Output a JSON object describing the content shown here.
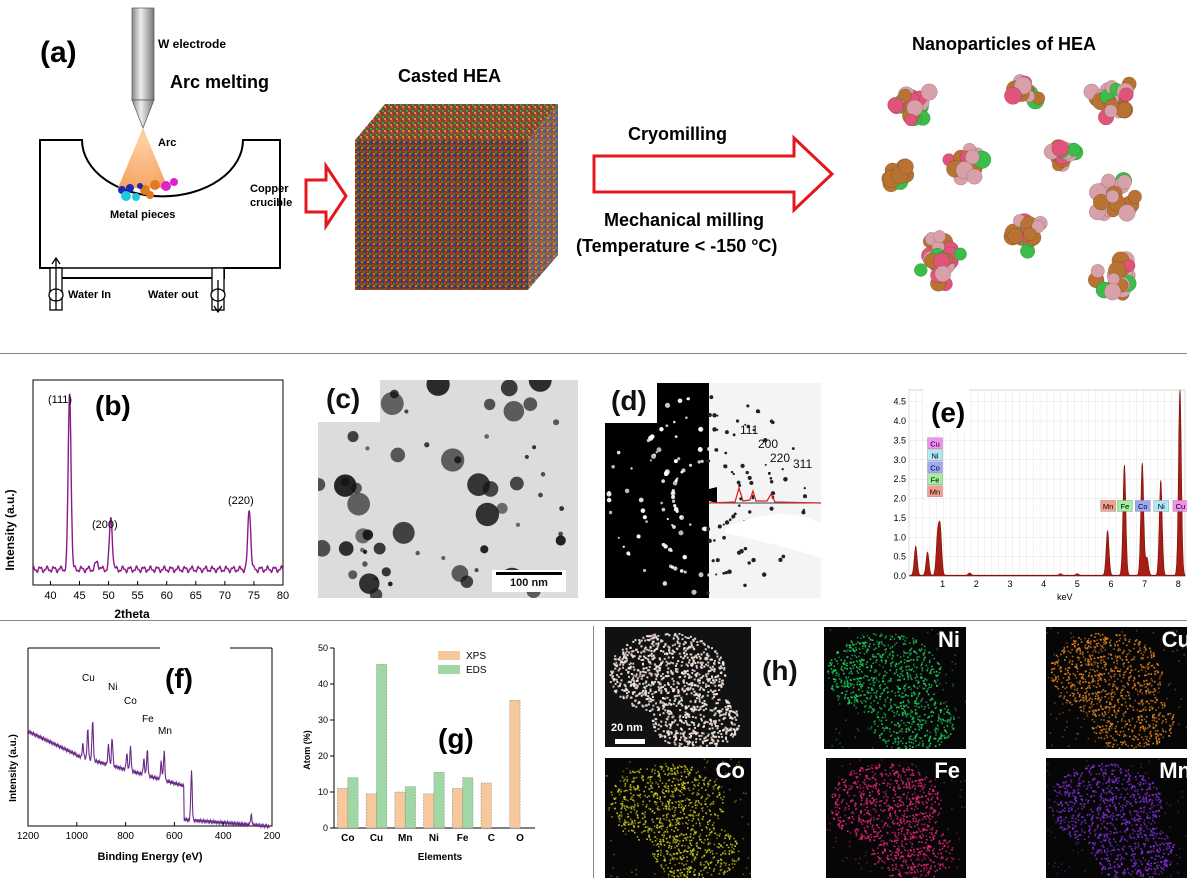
{
  "panel_a": {
    "label": "(a)",
    "arc_melting": {
      "title": "Arc melting",
      "electrode": "W electrode",
      "arc": "Arc",
      "metal_pieces": "Metal pieces",
      "copper_crucible_line1": "Copper",
      "copper_crucible_line2": "crucible",
      "water_in": "Water In",
      "water_out": "Water out"
    },
    "casted": {
      "title": "Casted HEA"
    },
    "process": {
      "cryomilling": "Cryomilling",
      "mechanical_milling": "Mechanical milling",
      "temperature": "(Temperature < -150 °C)"
    },
    "nanoparticles": {
      "title": "Nanoparticles of HEA"
    },
    "colors": {
      "arrow_red": "#e3171c",
      "cu": "#b87333",
      "ni": "#3bbd4a",
      "fe": "#e0547a",
      "co": "#d8a0a8"
    }
  },
  "panel_b": {
    "label": "(b)",
    "ylabel": "Intensity (a.u.)",
    "xlabel": "2theta",
    "peak_labels": [
      "(111)",
      "(200)",
      "(220)"
    ],
    "line_color": "#8a1a8a"
  },
  "panel_c": {
    "label": "(c)",
    "scale_bar": "100 nm"
  },
  "panel_d": {
    "label": "(d)",
    "rings": [
      "111",
      "200",
      "220",
      "311"
    ]
  },
  "panel_e": {
    "label": "(e)",
    "xlabel": "keV",
    "low_labels": [
      "Cu",
      "Ni",
      "Co",
      "Fe",
      "Mn"
    ],
    "high_labels": [
      "Mn",
      "Fe",
      "Co",
      "Ni",
      "Cu"
    ],
    "peak_color": "#a51d14"
  },
  "panel_f": {
    "label": "(f)",
    "ylabel": "Intensity (a.u.)",
    "xlabel": "Binding Energy (eV)",
    "peak_labels": [
      "Cu",
      "Ni",
      "Co",
      "Fe",
      "Mn"
    ]
  },
  "panel_g": {
    "label": "(g)",
    "ylabel": "Atom (%)",
    "xlabel": "Elements",
    "legend": [
      "XPS",
      "EDS"
    ]
  },
  "panel_h": {
    "label": "(h)",
    "scale_bar": "20 nm",
    "maps": [
      "Ni",
      "Cu",
      "Co",
      "Fe",
      "Mn"
    ]
  },
  "chart_data": [
    {
      "type": "line",
      "panel": "b",
      "xlabel": "2theta",
      "ylabel": "Intensity (a.u.)",
      "xlim": [
        37,
        80
      ],
      "x_ticks": [
        40,
        45,
        50,
        55,
        60,
        65,
        70,
        75,
        80
      ],
      "peaks": [
        {
          "x": 43.3,
          "height": 0.95,
          "label": "(111)"
        },
        {
          "x": 50.4,
          "height": 0.28,
          "label": "(200)"
        },
        {
          "x": 74.2,
          "height": 0.33,
          "label": "(220)"
        }
      ]
    },
    {
      "type": "line",
      "panel": "e",
      "xlabel": "keV",
      "xlim": [
        0,
        8.2
      ],
      "ylim": [
        0,
        4.8
      ],
      "x_ticks": [
        1,
        2,
        3,
        4,
        5,
        6,
        7,
        8
      ],
      "y_ticks": [
        0.0,
        0.5,
        1.0,
        1.5,
        2.0,
        2.5,
        3.0,
        3.5,
        4.0,
        4.5
      ],
      "peaks": [
        {
          "x": 0.2,
          "y": 0.75
        },
        {
          "x": 0.55,
          "y": 0.6
        },
        {
          "x": 0.85,
          "y": 1.0
        },
        {
          "x": 0.93,
          "y": 1.15
        },
        {
          "x": 5.9,
          "y": 1.15
        },
        {
          "x": 6.4,
          "y": 2.85
        },
        {
          "x": 6.93,
          "y": 2.9
        },
        {
          "x": 7.07,
          "y": 0.45
        },
        {
          "x": 7.48,
          "y": 2.45
        },
        {
          "x": 8.05,
          "y": 4.8
        }
      ]
    },
    {
      "type": "line",
      "panel": "f",
      "xlabel": "Binding Energy (eV)",
      "ylabel": "Intensity (a.u.)",
      "xlim": [
        1200,
        200
      ],
      "x_ticks": [
        1200,
        1000,
        800,
        600,
        400,
        200
      ]
    },
    {
      "type": "bar",
      "panel": "g",
      "xlabel": "Elements",
      "ylabel": "Atom (%)",
      "ylim": [
        0,
        50
      ],
      "y_ticks": [
        0,
        10,
        20,
        30,
        40,
        50
      ],
      "categories": [
        "Co",
        "Cu",
        "Mn",
        "Ni",
        "Fe",
        "C",
        "O"
      ],
      "series": [
        {
          "name": "XPS",
          "values": [
            11,
            9.5,
            10,
            9.5,
            11,
            12.5,
            35.5
          ]
        },
        {
          "name": "EDS",
          "values": [
            14,
            45.5,
            11.5,
            15.5,
            14,
            null,
            null
          ]
        }
      ],
      "colors": {
        "XPS": "#f7c89b",
        "EDS": "#9fd8a4"
      }
    }
  ]
}
